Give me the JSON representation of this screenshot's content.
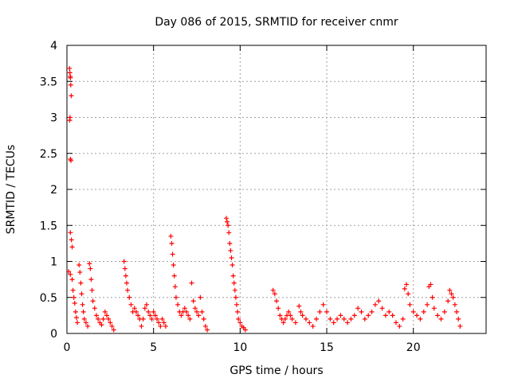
{
  "chart_data": {
    "type": "scatter",
    "title": "Day 086 of 2015, SRMTID for receiver cnmr",
    "xlabel": "GPS time / hours",
    "ylabel": "SRMTID / TECUs",
    "xlim": [
      0,
      24.2
    ],
    "ylim": [
      0,
      4
    ],
    "xticks": [
      0,
      5,
      10,
      15,
      20
    ],
    "xtick_labels": [
      "0",
      "5",
      "10",
      "15",
      "20"
    ],
    "yticks": [
      0,
      0.5,
      1,
      1.5,
      2,
      2.5,
      3,
      3.5,
      4
    ],
    "ytick_labels": [
      "0",
      "0.5",
      "1",
      "1.5",
      "2",
      "2.5",
      "3",
      "3.5",
      "4"
    ],
    "grid": true,
    "marker": "+",
    "marker_color": "#ff0000",
    "series": [
      {
        "name": "SRMTID",
        "points": [
          [
            0.15,
            3.68
          ],
          [
            0.17,
            3.62
          ],
          [
            0.19,
            3.57
          ],
          [
            0.2,
            3.55
          ],
          [
            0.22,
            3.45
          ],
          [
            0.25,
            3.3
          ],
          [
            0.18,
            3.0
          ],
          [
            0.16,
            2.96
          ],
          [
            0.2,
            2.42
          ],
          [
            0.23,
            2.4
          ],
          [
            0.2,
            1.4
          ],
          [
            0.26,
            1.3
          ],
          [
            0.3,
            1.2
          ],
          [
            0.1,
            0.86
          ],
          [
            0.2,
            0.82
          ],
          [
            0.3,
            0.75
          ],
          [
            0.35,
            0.6
          ],
          [
            0.4,
            0.5
          ],
          [
            0.45,
            0.42
          ],
          [
            0.5,
            0.3
          ],
          [
            0.55,
            0.22
          ],
          [
            0.6,
            0.15
          ],
          [
            0.7,
            0.95
          ],
          [
            0.75,
            0.85
          ],
          [
            0.8,
            0.7
          ],
          [
            0.85,
            0.55
          ],
          [
            0.9,
            0.4
          ],
          [
            0.95,
            0.3
          ],
          [
            1.0,
            0.2
          ],
          [
            1.1,
            0.15
          ],
          [
            1.2,
            0.1
          ],
          [
            1.3,
            0.97
          ],
          [
            1.35,
            0.9
          ],
          [
            1.4,
            0.75
          ],
          [
            1.45,
            0.6
          ],
          [
            1.5,
            0.45
          ],
          [
            1.6,
            0.35
          ],
          [
            1.7,
            0.25
          ],
          [
            1.8,
            0.2
          ],
          [
            1.9,
            0.15
          ],
          [
            2.0,
            0.12
          ],
          [
            2.1,
            0.2
          ],
          [
            2.2,
            0.3
          ],
          [
            2.3,
            0.25
          ],
          [
            2.4,
            0.2
          ],
          [
            2.5,
            0.15
          ],
          [
            2.6,
            0.1
          ],
          [
            2.7,
            0.05
          ],
          [
            3.3,
            1.0
          ],
          [
            3.35,
            0.9
          ],
          [
            3.4,
            0.8
          ],
          [
            3.45,
            0.7
          ],
          [
            3.5,
            0.6
          ],
          [
            3.6,
            0.5
          ],
          [
            3.7,
            0.4
          ],
          [
            3.8,
            0.3
          ],
          [
            3.9,
            0.35
          ],
          [
            4.0,
            0.3
          ],
          [
            4.1,
            0.25
          ],
          [
            4.2,
            0.2
          ],
          [
            4.3,
            0.1
          ],
          [
            4.4,
            0.2
          ],
          [
            4.5,
            0.35
          ],
          [
            4.6,
            0.4
          ],
          [
            4.7,
            0.3
          ],
          [
            4.8,
            0.25
          ],
          [
            4.9,
            0.2
          ],
          [
            5.0,
            0.3
          ],
          [
            5.1,
            0.25
          ],
          [
            5.2,
            0.2
          ],
          [
            5.3,
            0.15
          ],
          [
            5.4,
            0.1
          ],
          [
            5.5,
            0.2
          ],
          [
            5.6,
            0.15
          ],
          [
            5.7,
            0.1
          ],
          [
            6.0,
            1.35
          ],
          [
            6.05,
            1.25
          ],
          [
            6.1,
            1.1
          ],
          [
            6.15,
            0.95
          ],
          [
            6.2,
            0.8
          ],
          [
            6.25,
            0.65
          ],
          [
            6.3,
            0.5
          ],
          [
            6.4,
            0.4
          ],
          [
            6.5,
            0.3
          ],
          [
            6.6,
            0.25
          ],
          [
            6.7,
            0.3
          ],
          [
            6.8,
            0.35
          ],
          [
            6.9,
            0.3
          ],
          [
            7.0,
            0.25
          ],
          [
            7.1,
            0.2
          ],
          [
            7.2,
            0.7
          ],
          [
            7.3,
            0.45
          ],
          [
            7.4,
            0.35
          ],
          [
            7.5,
            0.3
          ],
          [
            7.6,
            0.25
          ],
          [
            7.7,
            0.5
          ],
          [
            7.8,
            0.3
          ],
          [
            7.9,
            0.2
          ],
          [
            8.0,
            0.1
          ],
          [
            8.1,
            0.05
          ],
          [
            9.2,
            1.6
          ],
          [
            9.25,
            1.55
          ],
          [
            9.3,
            1.5
          ],
          [
            9.35,
            1.4
          ],
          [
            9.4,
            1.25
          ],
          [
            9.45,
            1.15
          ],
          [
            9.5,
            1.05
          ],
          [
            9.55,
            0.95
          ],
          [
            9.6,
            0.8
          ],
          [
            9.65,
            0.7
          ],
          [
            9.7,
            0.6
          ],
          [
            9.75,
            0.5
          ],
          [
            9.8,
            0.4
          ],
          [
            9.85,
            0.3
          ],
          [
            9.9,
            0.2
          ],
          [
            10.0,
            0.15
          ],
          [
            10.1,
            0.1
          ],
          [
            10.2,
            0.08
          ],
          [
            10.3,
            0.05
          ],
          [
            11.9,
            0.6
          ],
          [
            12.0,
            0.55
          ],
          [
            12.1,
            0.45
          ],
          [
            12.2,
            0.35
          ],
          [
            12.3,
            0.25
          ],
          [
            12.4,
            0.2
          ],
          [
            12.5,
            0.15
          ],
          [
            12.6,
            0.2
          ],
          [
            12.7,
            0.25
          ],
          [
            12.8,
            0.3
          ],
          [
            12.9,
            0.25
          ],
          [
            13.0,
            0.2
          ],
          [
            13.2,
            0.15
          ],
          [
            13.4,
            0.38
          ],
          [
            13.5,
            0.3
          ],
          [
            13.6,
            0.25
          ],
          [
            13.8,
            0.2
          ],
          [
            14.0,
            0.15
          ],
          [
            14.2,
            0.1
          ],
          [
            14.4,
            0.2
          ],
          [
            14.6,
            0.3
          ],
          [
            14.8,
            0.4
          ],
          [
            15.0,
            0.3
          ],
          [
            15.2,
            0.2
          ],
          [
            15.4,
            0.15
          ],
          [
            15.6,
            0.2
          ],
          [
            15.8,
            0.25
          ],
          [
            16.0,
            0.2
          ],
          [
            16.2,
            0.15
          ],
          [
            16.4,
            0.2
          ],
          [
            16.6,
            0.25
          ],
          [
            16.8,
            0.35
          ],
          [
            17.0,
            0.3
          ],
          [
            17.2,
            0.2
          ],
          [
            17.4,
            0.25
          ],
          [
            17.6,
            0.3
          ],
          [
            17.8,
            0.4
          ],
          [
            18.0,
            0.45
          ],
          [
            18.2,
            0.35
          ],
          [
            18.4,
            0.25
          ],
          [
            18.6,
            0.3
          ],
          [
            18.8,
            0.25
          ],
          [
            19.0,
            0.15
          ],
          [
            19.2,
            0.1
          ],
          [
            19.4,
            0.2
          ],
          [
            19.5,
            0.62
          ],
          [
            19.6,
            0.68
          ],
          [
            19.7,
            0.55
          ],
          [
            19.8,
            0.4
          ],
          [
            20.0,
            0.3
          ],
          [
            20.2,
            0.25
          ],
          [
            20.4,
            0.2
          ],
          [
            20.6,
            0.3
          ],
          [
            20.8,
            0.4
          ],
          [
            20.9,
            0.65
          ],
          [
            21.0,
            0.68
          ],
          [
            21.1,
            0.5
          ],
          [
            21.2,
            0.35
          ],
          [
            21.4,
            0.25
          ],
          [
            21.6,
            0.2
          ],
          [
            21.8,
            0.3
          ],
          [
            22.0,
            0.45
          ],
          [
            22.1,
            0.6
          ],
          [
            22.2,
            0.55
          ],
          [
            22.3,
            0.5
          ],
          [
            22.4,
            0.4
          ],
          [
            22.5,
            0.3
          ],
          [
            22.6,
            0.2
          ],
          [
            22.7,
            0.1
          ]
        ]
      }
    ]
  }
}
